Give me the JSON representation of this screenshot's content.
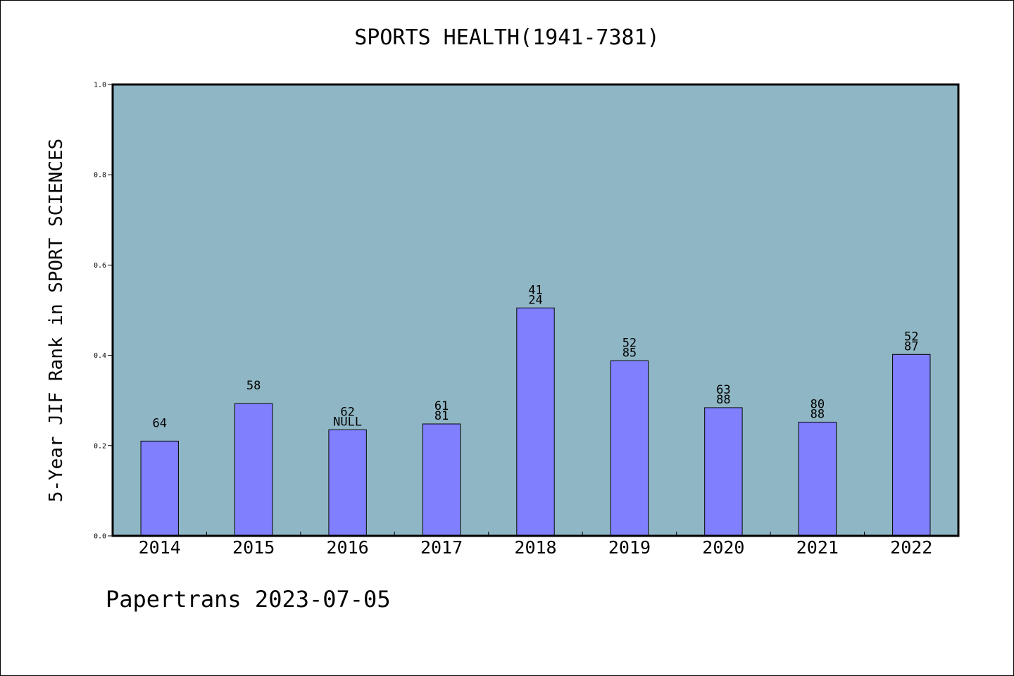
{
  "chart_data": {
    "type": "bar",
    "title": "SPORTS HEALTH(1941-7381)",
    "ylabel": "5-Year JIF Rank in SPORT SCIENCES",
    "xlabel": "",
    "categories": [
      "2014",
      "2015",
      "2016",
      "2017",
      "2018",
      "2019",
      "2020",
      "2021",
      "2022"
    ],
    "values": [
      0.21,
      0.293,
      0.235,
      0.248,
      0.505,
      0.388,
      0.284,
      0.252,
      0.402
    ],
    "bar_labels": [
      [
        "64"
      ],
      [
        "58"
      ],
      [
        "62",
        "NULL"
      ],
      [
        "61",
        "81"
      ],
      [
        "41",
        "24"
      ],
      [
        "52",
        "85"
      ],
      [
        "63",
        "88"
      ],
      [
        "80",
        "88"
      ],
      [
        "52",
        "87"
      ]
    ],
    "ylim": [
      0,
      1.0
    ],
    "yticks": [
      "0.0",
      "0.2",
      "0.4",
      "0.6",
      "0.8",
      "1.0"
    ],
    "grid": false,
    "colors": {
      "plot_background": "#8fb6c4",
      "bar_fill": "#8080ff",
      "bar_stroke": "#000000"
    }
  },
  "footer": {
    "note": "Papertrans 2023-07-05"
  }
}
